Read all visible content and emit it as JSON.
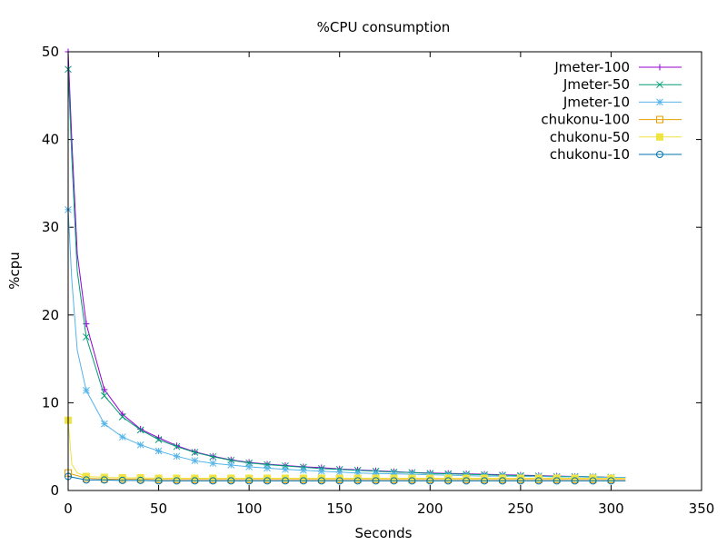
{
  "chart_data": {
    "type": "line",
    "title": "%CPU consumption",
    "xlabel": "Seconds",
    "ylabel": "%cpu",
    "xlim": [
      0,
      350
    ],
    "ylim": [
      0,
      50
    ],
    "xticks": [
      0,
      50,
      100,
      150,
      200,
      250,
      300,
      350
    ],
    "yticks": [
      0,
      10,
      20,
      30,
      40,
      50
    ],
    "grid": false,
    "legend": "top-right",
    "series": [
      {
        "name": "Jmeter-100",
        "color": "#9400d3",
        "marker": "plus",
        "x": [
          0,
          2,
          5,
          10,
          20,
          30,
          40,
          50,
          60,
          70,
          80,
          90,
          100,
          110,
          120,
          130,
          140,
          150,
          160,
          170,
          180,
          190,
          200,
          210,
          220,
          230,
          240,
          250,
          260,
          270,
          280,
          290,
          300,
          308
        ],
        "y": [
          50,
          40,
          27,
          19,
          11.5,
          8.7,
          7.0,
          6.0,
          5.1,
          4.4,
          3.9,
          3.5,
          3.2,
          3.0,
          2.85,
          2.7,
          2.6,
          2.45,
          2.35,
          2.25,
          2.15,
          2.05,
          2.0,
          1.95,
          1.9,
          1.85,
          1.8,
          1.75,
          1.7,
          1.65,
          1.6,
          1.55,
          1.5,
          1.5
        ]
      },
      {
        "name": "Jmeter-50",
        "color": "#009e73",
        "marker": "cross",
        "x": [
          0,
          2,
          5,
          10,
          20,
          30,
          40,
          50,
          60,
          70,
          80,
          90,
          100,
          110,
          120,
          130,
          140,
          150,
          160,
          170,
          180,
          190,
          200,
          210,
          220,
          230,
          240,
          250,
          260,
          270,
          280,
          290,
          300,
          308
        ],
        "y": [
          48,
          38,
          25,
          17.5,
          10.8,
          8.4,
          6.9,
          5.8,
          5.0,
          4.35,
          3.85,
          3.45,
          3.15,
          2.95,
          2.8,
          2.65,
          2.5,
          2.4,
          2.3,
          2.2,
          2.1,
          2.05,
          1.95,
          1.9,
          1.85,
          1.8,
          1.75,
          1.7,
          1.65,
          1.6,
          1.6,
          1.55,
          1.5,
          1.5
        ]
      },
      {
        "name": "Jmeter-10",
        "color": "#56b4e9",
        "marker": "star",
        "x": [
          0,
          2,
          5,
          10,
          20,
          30,
          40,
          50,
          60,
          70,
          80,
          90,
          100,
          110,
          120,
          130,
          140,
          150,
          160,
          170,
          180,
          190,
          200,
          210,
          220,
          230,
          240,
          250,
          260,
          270,
          280,
          290,
          300,
          308
        ],
        "y": [
          32,
          24,
          16,
          11.4,
          7.6,
          6.1,
          5.2,
          4.5,
          3.9,
          3.4,
          3.1,
          2.9,
          2.7,
          2.55,
          2.4,
          2.3,
          2.2,
          2.1,
          2.0,
          1.95,
          1.9,
          1.85,
          1.8,
          1.75,
          1.7,
          1.65,
          1.65,
          1.6,
          1.6,
          1.55,
          1.55,
          1.5,
          1.5,
          1.5
        ]
      },
      {
        "name": "chukonu-100",
        "color": "#e69f00",
        "marker": "open-square",
        "x": [
          0,
          10,
          20,
          30,
          40,
          50,
          60,
          70,
          80,
          90,
          100,
          110,
          120,
          130,
          140,
          150,
          160,
          170,
          180,
          190,
          200,
          210,
          220,
          230,
          240,
          250,
          260,
          270,
          280,
          290,
          300,
          308
        ],
        "y": [
          2.0,
          1.4,
          1.3,
          1.3,
          1.3,
          1.25,
          1.25,
          1.25,
          1.25,
          1.25,
          1.25,
          1.25,
          1.25,
          1.25,
          1.25,
          1.25,
          1.25,
          1.25,
          1.25,
          1.25,
          1.25,
          1.25,
          1.25,
          1.25,
          1.25,
          1.25,
          1.25,
          1.25,
          1.25,
          1.25,
          1.25,
          1.25
        ]
      },
      {
        "name": "chukonu-50",
        "color": "#f0e442",
        "marker": "filled-square",
        "x": [
          0,
          2,
          5,
          10,
          20,
          30,
          40,
          50,
          60,
          70,
          80,
          90,
          100,
          110,
          120,
          130,
          140,
          150,
          160,
          170,
          180,
          190,
          200,
          210,
          220,
          230,
          240,
          250,
          260,
          270,
          280,
          290,
          300,
          308
        ],
        "y": [
          8.0,
          3.0,
          2.0,
          1.6,
          1.5,
          1.45,
          1.45,
          1.4,
          1.4,
          1.4,
          1.4,
          1.4,
          1.4,
          1.4,
          1.4,
          1.4,
          1.4,
          1.4,
          1.4,
          1.4,
          1.4,
          1.4,
          1.4,
          1.4,
          1.4,
          1.4,
          1.4,
          1.4,
          1.4,
          1.4,
          1.4,
          1.4,
          1.4,
          1.4
        ]
      },
      {
        "name": "chukonu-10",
        "color": "#0072b2",
        "marker": "open-circle",
        "x": [
          0,
          10,
          20,
          30,
          40,
          50,
          60,
          70,
          80,
          90,
          100,
          110,
          120,
          130,
          140,
          150,
          160,
          170,
          180,
          190,
          200,
          210,
          220,
          230,
          240,
          250,
          260,
          270,
          280,
          290,
          300,
          308
        ],
        "y": [
          1.6,
          1.2,
          1.2,
          1.15,
          1.15,
          1.1,
          1.1,
          1.1,
          1.1,
          1.1,
          1.1,
          1.1,
          1.1,
          1.1,
          1.1,
          1.1,
          1.1,
          1.1,
          1.1,
          1.1,
          1.1,
          1.1,
          1.1,
          1.1,
          1.1,
          1.1,
          1.1,
          1.1,
          1.1,
          1.1,
          1.1,
          1.1
        ]
      }
    ]
  }
}
